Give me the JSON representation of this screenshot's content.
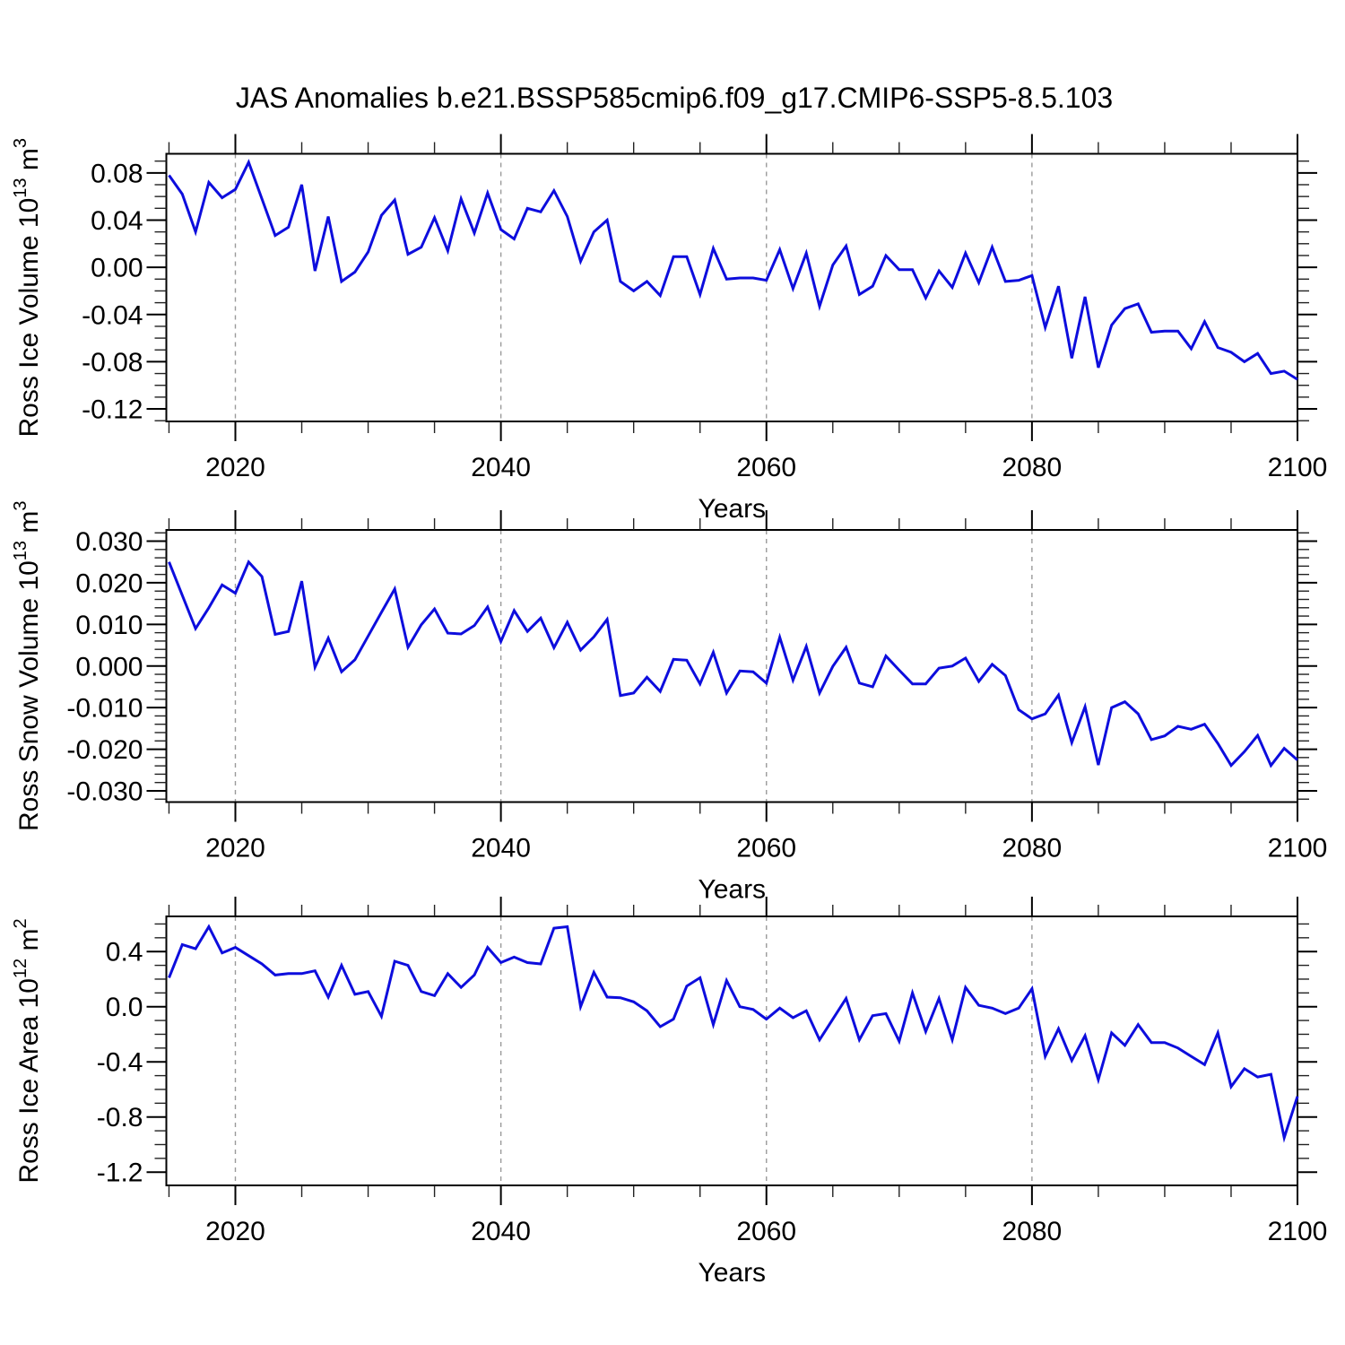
{
  "title": "JAS Anomalies b.e21.BSSP585cmip6.f09_g17.CMIP6-SSP5-8.5.103",
  "background": "#ffffff",
  "colors": {
    "line": "#0d0ddd",
    "grid": "#9a9a9a",
    "frame": "#000000",
    "minor_tick": "#222222"
  },
  "chart_data": {
    "type": "line",
    "xlabel": "Years",
    "xlim": [
      2014.8,
      2100
    ],
    "xticks": [
      2020,
      2040,
      2060,
      2080,
      2100
    ],
    "xtick_labels": [
      "2020",
      "2040",
      "2060",
      "2080",
      "2100"
    ],
    "x_minor_step": 5,
    "grid_x": [
      2020,
      2040,
      2060,
      2080
    ],
    "grid_style": "vertical-dashed",
    "legend": "none",
    "x_years": [
      2015,
      2016,
      2017,
      2018,
      2019,
      2020,
      2021,
      2022,
      2023,
      2024,
      2025,
      2026,
      2027,
      2028,
      2029,
      2030,
      2031,
      2032,
      2033,
      2034,
      2035,
      2036,
      2037,
      2038,
      2039,
      2040,
      2041,
      2042,
      2043,
      2044,
      2045,
      2046,
      2047,
      2048,
      2049,
      2050,
      2051,
      2052,
      2053,
      2054,
      2055,
      2056,
      2057,
      2058,
      2059,
      2060,
      2061,
      2062,
      2063,
      2064,
      2065,
      2066,
      2067,
      2068,
      2069,
      2070,
      2071,
      2072,
      2073,
      2074,
      2075,
      2076,
      2077,
      2078,
      2079,
      2080,
      2081,
      2082,
      2083,
      2084,
      2085,
      2086,
      2087,
      2088,
      2089,
      2090,
      2091,
      2092,
      2093,
      2094,
      2095,
      2096,
      2097,
      2098,
      2099,
      2100
    ],
    "panels": [
      {
        "id": "ross-ice-volume",
        "ylabel_text": "Ross Ice Volume 10^13 m^3",
        "ylabel_parts": [
          {
            "t": "Ross Ice Volume 10"
          },
          {
            "t": "13",
            "sup": true
          },
          {
            "t": " m"
          },
          {
            "t": "3",
            "sup": true
          }
        ],
        "ylim": [
          -0.1306,
          0.0962
        ],
        "yticks": [
          0.08,
          0.04,
          0.0,
          -0.04,
          -0.08,
          -0.12
        ],
        "ytick_labels": [
          "0.08",
          "0.04",
          "0.00",
          "-0.04",
          "-0.08",
          "-0.12"
        ],
        "y_minor_step": 0.01,
        "values": [
          0.078,
          0.062,
          0.03,
          0.072,
          0.059,
          0.066,
          0.089,
          0.058,
          0.027,
          0.034,
          0.07,
          -0.003,
          0.043,
          -0.012,
          -0.004,
          0.013,
          0.044,
          0.057,
          0.011,
          0.017,
          0.042,
          0.014,
          0.058,
          0.029,
          0.063,
          0.032,
          0.024,
          0.05,
          0.047,
          0.065,
          0.043,
          0.005,
          0.03,
          0.04,
          -0.012,
          -0.02,
          -0.012,
          -0.024,
          0.009,
          0.009,
          -0.023,
          0.016,
          -0.01,
          -0.009,
          -0.009,
          -0.011,
          0.015,
          -0.018,
          0.012,
          -0.033,
          0.002,
          0.018,
          -0.023,
          -0.016,
          0.01,
          -0.002,
          -0.002,
          -0.026,
          -0.003,
          -0.017,
          0.012,
          -0.013,
          0.017,
          -0.012,
          -0.011,
          -0.007,
          -0.051,
          -0.016,
          -0.077,
          -0.025,
          -0.085,
          -0.049,
          -0.035,
          -0.031,
          -0.055,
          -0.054,
          -0.054,
          -0.069,
          -0.046,
          -0.068,
          -0.072,
          -0.08,
          -0.073,
          -0.09,
          -0.088,
          -0.095
        ]
      },
      {
        "id": "ross-snow-volume",
        "ylabel_text": "Ross Snow Volume 10^13 m^3",
        "ylabel_parts": [
          {
            "t": "Ross Snow Volume 10"
          },
          {
            "t": "13",
            "sup": true
          },
          {
            "t": " m"
          },
          {
            "t": "3",
            "sup": true
          }
        ],
        "ylim": [
          -0.0327,
          0.0327
        ],
        "yticks": [
          0.03,
          0.02,
          0.01,
          0.0,
          -0.01,
          -0.02,
          -0.03
        ],
        "ytick_labels": [
          "0.030",
          "0.020",
          "0.010",
          "0.000",
          "-0.010",
          "-0.020",
          "-0.030"
        ],
        "y_minor_step": 0.002,
        "values": [
          0.025,
          0.017,
          0.009,
          0.014,
          0.0195,
          0.0175,
          0.025,
          0.0215,
          0.0076,
          0.0083,
          0.0204,
          -0.0003,
          0.0067,
          -0.0014,
          0.0015,
          0.0072,
          0.0129,
          0.0185,
          0.0045,
          0.0099,
          0.0137,
          0.0079,
          0.0077,
          0.0097,
          0.0142,
          0.0059,
          0.0133,
          0.0083,
          0.0115,
          0.0044,
          0.0105,
          0.0038,
          0.007,
          0.0112,
          -0.0071,
          -0.0065,
          -0.0027,
          -0.0061,
          0.0016,
          0.0014,
          -0.0043,
          0.0033,
          -0.0065,
          -0.0012,
          -0.0014,
          -0.0041,
          0.0069,
          -0.0034,
          0.0047,
          -0.0065,
          -0.0001,
          0.0045,
          -0.0041,
          -0.005,
          0.0024,
          -0.001,
          -0.0043,
          -0.0043,
          -0.0005,
          0.0,
          0.0019,
          -0.0037,
          0.0004,
          -0.0023,
          -0.0105,
          -0.0127,
          -0.0115,
          -0.007,
          -0.0184,
          -0.0098,
          -0.0238,
          -0.01,
          -0.0086,
          -0.0115,
          -0.0177,
          -0.0168,
          -0.0145,
          -0.0152,
          -0.014,
          -0.0186,
          -0.0239,
          -0.0206,
          -0.0167,
          -0.0239,
          -0.0198,
          -0.0226
        ]
      },
      {
        "id": "ross-ice-area",
        "ylabel_text": "Ross Ice Area 10^12 m^2",
        "ylabel_parts": [
          {
            "t": "Ross Ice Area 10"
          },
          {
            "t": "12",
            "sup": true
          },
          {
            "t": " m"
          },
          {
            "t": "2",
            "sup": true
          }
        ],
        "ylim": [
          -1.296,
          0.655
        ],
        "yticks": [
          0.4,
          0.0,
          -0.4,
          -0.8,
          -1.2
        ],
        "ytick_labels": [
          "0.4",
          "0.0",
          "-0.4",
          "-0.8",
          "-1.2"
        ],
        "y_minor_step": 0.1,
        "values": [
          0.21,
          0.45,
          0.42,
          0.58,
          0.39,
          0.43,
          0.37,
          0.31,
          0.23,
          0.24,
          0.24,
          0.26,
          0.07,
          0.3,
          0.09,
          0.11,
          -0.07,
          0.33,
          0.3,
          0.11,
          0.08,
          0.24,
          0.14,
          0.23,
          0.43,
          0.32,
          0.36,
          0.32,
          0.31,
          0.57,
          0.58,
          0.0,
          0.25,
          0.07,
          0.065,
          0.035,
          -0.03,
          -0.145,
          -0.09,
          0.15,
          0.21,
          -0.13,
          0.19,
          0.0,
          -0.02,
          -0.09,
          -0.01,
          -0.08,
          -0.03,
          -0.24,
          -0.09,
          0.06,
          -0.24,
          -0.065,
          -0.05,
          -0.25,
          0.1,
          -0.18,
          0.06,
          -0.24,
          0.14,
          0.01,
          -0.01,
          -0.05,
          -0.01,
          0.13,
          -0.36,
          -0.16,
          -0.39,
          -0.21,
          -0.53,
          -0.19,
          -0.28,
          -0.13,
          -0.26,
          -0.26,
          -0.3,
          -0.36,
          -0.42,
          -0.19,
          -0.58,
          -0.45,
          -0.51,
          -0.49,
          -0.95,
          -0.65
        ]
      }
    ]
  }
}
